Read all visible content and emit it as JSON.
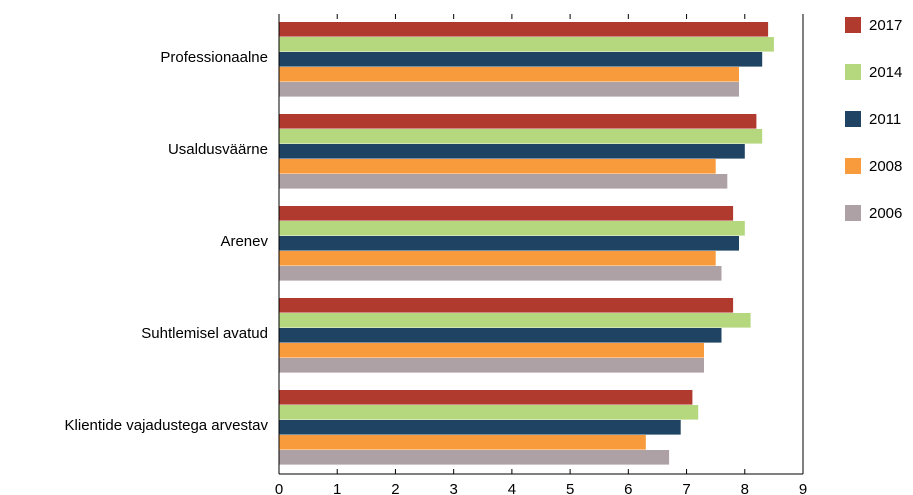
{
  "chart_data": {
    "type": "bar",
    "orientation": "horizontal",
    "categories": [
      "Professionaalne",
      "Usaldusväärne",
      "Arenev",
      "Suhtlemisel avatud",
      "Klientide vajadustega arvestav"
    ],
    "series": [
      {
        "name": "2017",
        "color": "#B03A2E",
        "values": [
          8.4,
          8.2,
          7.8,
          7.8,
          7.1
        ]
      },
      {
        "name": "2014",
        "color": "#B5D77D",
        "values": [
          8.5,
          8.3,
          8.0,
          8.1,
          7.2
        ]
      },
      {
        "name": "2011",
        "color": "#1F4463",
        "values": [
          8.3,
          8.0,
          7.9,
          7.6,
          6.9
        ]
      },
      {
        "name": "2008",
        "color": "#F79B3C",
        "values": [
          7.9,
          7.5,
          7.5,
          7.3,
          6.3
        ]
      },
      {
        "name": "2006",
        "color": "#ADA1A6",
        "values": [
          7.9,
          7.7,
          7.6,
          7.3,
          6.7
        ]
      }
    ],
    "xlim": [
      0,
      9
    ],
    "xticks": [
      "0",
      "1",
      "2",
      "3",
      "4",
      "5",
      "6",
      "7",
      "8",
      "9"
    ],
    "grid": false,
    "legend": "right"
  }
}
